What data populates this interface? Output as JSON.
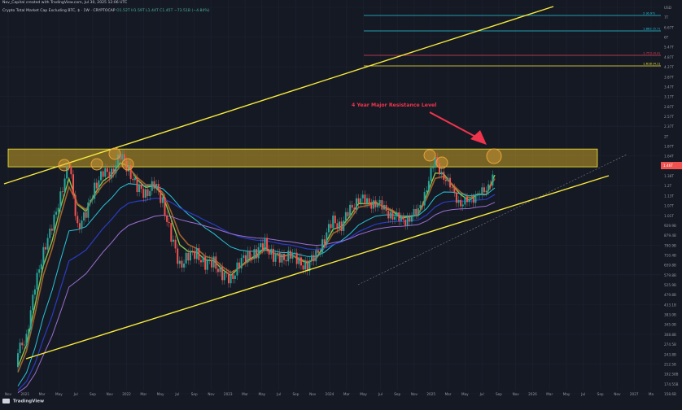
{
  "header": {
    "created_by": "Nav_Capital created with TradingView.com, Jul 30, 2025 12:06 UTC"
  },
  "symbol_info": {
    "title": "Crypto Total Market Cap Excluding BTC, $ · 1W · CRYPTOCAP",
    "ohlc": "O1.52T H1.59T L1.44T C1.45T −73.51B (−4.84%)"
  },
  "annotation": "4 Year Major Resistance Level",
  "watermark": "TradingView",
  "colors": {
    "background": "#151924",
    "up": "#26a69a",
    "down": "#ef5350",
    "trendline": "#f7ea3c",
    "resistance_zone": "#c9a227",
    "circle": "#e8a23a",
    "annotation": "#f0344c",
    "ema_short": "#2e7d32",
    "ema_mid": "#a3612a",
    "ema_long": "#26c6da",
    "ema_200": "#2a3cc0",
    "ema_ultra": "#9c6fd0"
  },
  "chart_data": {
    "type": "candlestick",
    "title": "Crypto Total Market Cap Excluding BTC, $",
    "timeframe": "1W",
    "log_scale": true,
    "x_ticks": [
      "Nov",
      "2021",
      "Mar",
      "May",
      "Jul",
      "Sep",
      "Nov",
      "2022",
      "Mar",
      "May",
      "Jul",
      "Sep",
      "Nov",
      "2023",
      "Mar",
      "May",
      "Jul",
      "Sep",
      "Nov",
      "2024",
      "Mar",
      "May",
      "Jul",
      "Sep",
      "Nov",
      "2025",
      "Mar",
      "May",
      "Jul",
      "Sep",
      "Nov",
      "2026",
      "Mar",
      "May",
      "Jul",
      "Sep",
      "Nov",
      "2027",
      "Ma"
    ],
    "y_ticks": [
      "USD",
      "7T",
      "6.67T",
      "6T",
      "5.47T",
      "4.87T",
      "4.27T",
      "3.87T",
      "3.47T",
      "3.17T",
      "2.87T",
      "2.57T",
      "2.37T",
      "2T",
      "1.87T",
      "1.64T",
      "1.47T",
      "1.38T",
      "1.2T",
      "1.13T",
      "1.07T",
      "1.01T",
      "929.9B",
      "879.4B",
      "790.9B",
      "710.4B",
      "659.8B",
      "579.8B",
      "525.9B",
      "479.8B",
      "433.1B",
      "383.0B",
      "345.0B",
      "308.8B",
      "274.5B",
      "243.8B",
      "212.5B",
      "192.58B",
      "174.55B",
      "158.6B"
    ],
    "current_price_label": "1.46T",
    "fib_levels": [
      {
        "label": "2 (6.97)",
        "color": "#26c6da"
      },
      {
        "label": "1.882 (5.7)",
        "color": "#26c6da"
      },
      {
        "label": "1.753 (4.4)",
        "color": "#e0435a"
      },
      {
        "label": "1.618 (4.1)",
        "color": "#f7ea3c"
      }
    ],
    "resistance_zone": {
      "low": 1.42,
      "high": 1.75,
      "units": "T USD"
    },
    "touch_points": [
      "May 2021",
      "Sep 2021",
      "Nov 2021",
      "Dec 2021",
      "Jan 2022",
      "Dec 2024",
      "Jan 2025",
      "Jul 2025"
    ],
    "series_close": [
      {
        "x": "2020-11",
        "c": 0.16
      },
      {
        "x": "2020-12",
        "c": 0.2
      },
      {
        "x": "2021-01",
        "c": 0.34
      },
      {
        "x": "2021-02",
        "c": 0.55
      },
      {
        "x": "2021-03",
        "c": 0.68
      },
      {
        "x": "2021-04",
        "c": 1.05
      },
      {
        "x": "2021-05",
        "c": 1.45
      },
      {
        "x": "2021-06",
        "c": 0.72
      },
      {
        "x": "2021-07",
        "c": 0.8
      },
      {
        "x": "2021-08",
        "c": 1.15
      },
      {
        "x": "2021-09",
        "c": 1.3
      },
      {
        "x": "2021-10",
        "c": 1.35
      },
      {
        "x": "2021-11",
        "c": 1.6
      },
      {
        "x": "2021-12",
        "c": 1.4
      },
      {
        "x": "2022-01",
        "c": 1.1
      },
      {
        "x": "2022-02",
        "c": 1.05
      },
      {
        "x": "2022-03",
        "c": 1.15
      },
      {
        "x": "2022-04",
        "c": 0.95
      },
      {
        "x": "2022-05",
        "c": 0.62
      },
      {
        "x": "2022-06",
        "c": 0.45
      },
      {
        "x": "2022-07",
        "c": 0.5
      },
      {
        "x": "2022-08",
        "c": 0.52
      },
      {
        "x": "2022-09",
        "c": 0.45
      },
      {
        "x": "2022-10",
        "c": 0.47
      },
      {
        "x": "2022-11",
        "c": 0.4
      },
      {
        "x": "2022-12",
        "c": 0.38
      },
      {
        "x": "2023-01",
        "c": 0.46
      },
      {
        "x": "2023-02",
        "c": 0.5
      },
      {
        "x": "2023-03",
        "c": 0.52
      },
      {
        "x": "2023-04",
        "c": 0.58
      },
      {
        "x": "2023-05",
        "c": 0.5
      },
      {
        "x": "2023-06",
        "c": 0.48
      },
      {
        "x": "2023-07",
        "c": 0.52
      },
      {
        "x": "2023-08",
        "c": 0.46
      },
      {
        "x": "2023-09",
        "c": 0.45
      },
      {
        "x": "2023-10",
        "c": 0.5
      },
      {
        "x": "2023-11",
        "c": 0.62
      },
      {
        "x": "2023-12",
        "c": 0.75
      },
      {
        "x": "2024-01",
        "c": 0.72
      },
      {
        "x": "2024-02",
        "c": 0.85
      },
      {
        "x": "2024-03",
        "c": 1.0
      },
      {
        "x": "2024-04",
        "c": 0.92
      },
      {
        "x": "2024-05",
        "c": 0.95
      },
      {
        "x": "2024-06",
        "c": 0.85
      },
      {
        "x": "2024-07",
        "c": 0.82
      },
      {
        "x": "2024-08",
        "c": 0.74
      },
      {
        "x": "2024-09",
        "c": 0.8
      },
      {
        "x": "2024-10",
        "c": 0.82
      },
      {
        "x": "2024-11",
        "c": 1.15
      },
      {
        "x": "2024-12",
        "c": 1.5
      },
      {
        "x": "2025-01",
        "c": 1.3
      },
      {
        "x": "2025-02",
        "c": 1.05
      },
      {
        "x": "2025-03",
        "c": 0.95
      },
      {
        "x": "2025-04",
        "c": 0.92
      },
      {
        "x": "2025-05",
        "c": 1.08
      },
      {
        "x": "2025-06",
        "c": 1.02
      },
      {
        "x": "2025-07",
        "c": 1.45
      }
    ]
  }
}
